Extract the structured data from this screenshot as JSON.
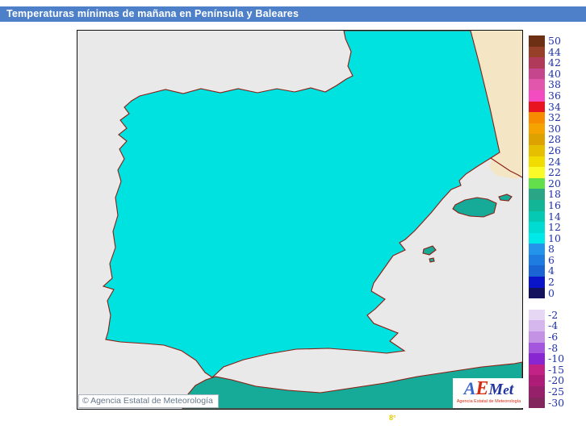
{
  "title_bar": {
    "text": "Temperaturas mínimas de mañana en Península y Baleares",
    "bg_color": "#4d80c9",
    "text_color": "#ffffff"
  },
  "map": {
    "copyright": "© Agencia Estatal de Meteorología",
    "bottom_label": "8°",
    "palette": {
      "sea": "#e9e9e9",
      "outside_domain": "#f4e6c4",
      "land_base": "#00e2e0",
      "teal": "#16ab99",
      "blue": "#2e8ee8",
      "blue_dark": "#1f6ede",
      "navy": "#0a12c0",
      "navy_darkest": "#141458",
      "green": "#5cdc48",
      "yellow": "#f2ee2e",
      "coastline": "#8b1d12",
      "province_border": "#6b2418"
    }
  },
  "legend": {
    "label_color": "#2233aa",
    "entries": [
      {
        "label": "50",
        "color": "#6e3014"
      },
      {
        "label": "44",
        "color": "#96402a"
      },
      {
        "label": "42",
        "color": "#b03a5a"
      },
      {
        "label": "40",
        "color": "#c6468e"
      },
      {
        "label": "38",
        "color": "#e256ac"
      },
      {
        "label": "36",
        "color": "#f24cc0"
      },
      {
        "label": "34",
        "color": "#e81420"
      },
      {
        "label": "32",
        "color": "#f88c00"
      },
      {
        "label": "30",
        "color": "#f4a300"
      },
      {
        "label": "28",
        "color": "#dda200"
      },
      {
        "label": "26",
        "color": "#e6c000"
      },
      {
        "label": "24",
        "color": "#f0dc00"
      },
      {
        "label": "22",
        "color": "#fafa28"
      },
      {
        "label": "20",
        "color": "#63df4b"
      },
      {
        "label": "18",
        "color": "#2aa585"
      },
      {
        "label": "16",
        "color": "#12b697"
      },
      {
        "label": "14",
        "color": "#06c9b4"
      },
      {
        "label": "12",
        "color": "#00dcd2"
      },
      {
        "label": "10",
        "color": "#00e9e9"
      },
      {
        "label": "8",
        "color": "#2494ea"
      },
      {
        "label": "6",
        "color": "#1e7ce0"
      },
      {
        "label": "4",
        "color": "#1a64d4"
      },
      {
        "label": "2",
        "color": "#0a14c8"
      },
      {
        "label": "0",
        "color": "#12125e"
      },
      {
        "gap": true
      },
      {
        "label": "-2",
        "color": "#e6d7f5"
      },
      {
        "label": "-4",
        "color": "#d5b7ee"
      },
      {
        "label": "-6",
        "color": "#c392e4"
      },
      {
        "label": "-8",
        "color": "#a457dc"
      },
      {
        "label": "-10",
        "color": "#8826d2"
      },
      {
        "label": "-15",
        "color": "#c22186"
      },
      {
        "label": "-20",
        "color": "#ad1c77"
      },
      {
        "label": "-25",
        "color": "#97206a"
      },
      {
        "label": "-30",
        "color": "#84265e"
      }
    ]
  },
  "logo": {
    "letters": [
      {
        "ch": "A",
        "color": "#3a66cc",
        "size": 22
      },
      {
        "ch": "E",
        "color": "#d42a10",
        "size": 24
      },
      {
        "ch": "M",
        "color": "#20339e",
        "size": 20
      },
      {
        "ch": "e",
        "color": "#20339e",
        "size": 17
      },
      {
        "ch": "t",
        "color": "#20339e",
        "size": 20
      }
    ],
    "caption": "Agencia Estatal de Meteorología",
    "caption_color": "#d42a10"
  }
}
